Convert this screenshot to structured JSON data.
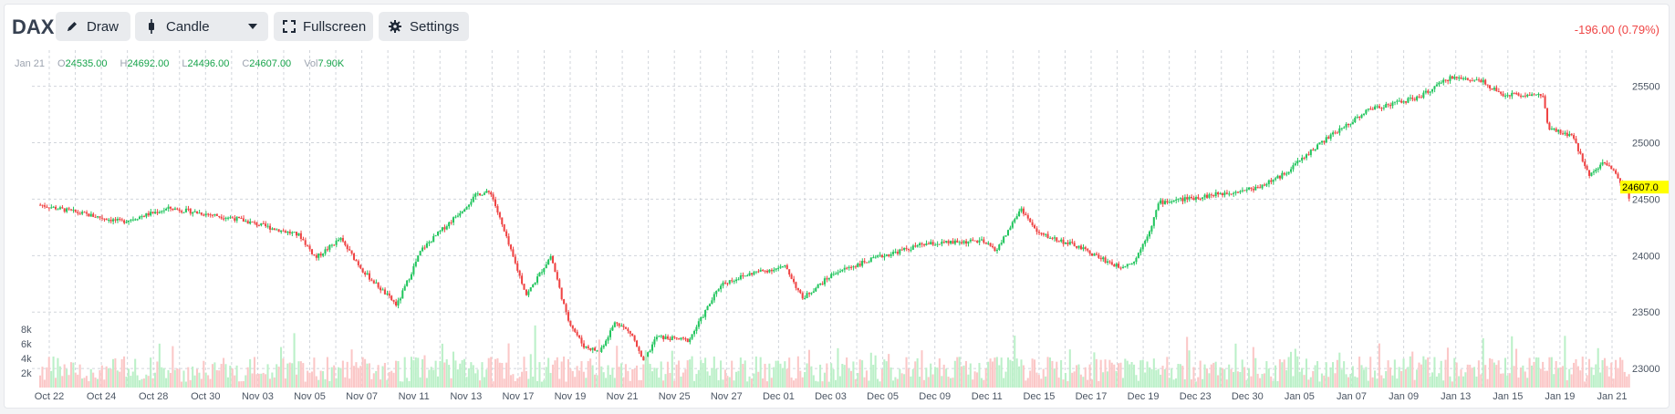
{
  "toolbar": {
    "symbol": "DAX",
    "draw_label": "Draw",
    "chart_type_label": "Candle",
    "fullscreen_label": "Fullscreen",
    "settings_label": "Settings",
    "change_text": "-196.00 (0.79%)"
  },
  "legend": {
    "date": "Jan 21",
    "open_key": "O",
    "open": "24535.00",
    "high_key": "H",
    "high": "24692.00",
    "low_key": "L",
    "low": "24496.00",
    "close_key": "C",
    "close": "24607.00",
    "vol_key": "Vol",
    "vol": "7.90K"
  },
  "colors": {
    "up": "#22c55e",
    "down": "#ef4444",
    "up_volume": "#bbf0c8",
    "down_volume": "#fbc7c7",
    "last_price_bg": "#ffff00",
    "grid": "#d1d5db",
    "axis_text": "#4b5563"
  },
  "chart_data": {
    "type": "candlestick",
    "title": "DAX",
    "x_labels": [
      "Oct 22",
      "Oct 24",
      "Oct 28",
      "Oct 30",
      "Nov 03",
      "Nov 05",
      "Nov 07",
      "Nov 11",
      "Nov 13",
      "Nov 17",
      "Nov 19",
      "Nov 21",
      "Nov 25",
      "Nov 27",
      "Dec 01",
      "Dec 03",
      "Dec 05",
      "Dec 09",
      "Dec 11",
      "Dec 15",
      "Dec 17",
      "Dec 19",
      "Dec 23",
      "Dec 30",
      "Jan 05",
      "Jan 07",
      "Jan 09",
      "Jan 13",
      "Jan 15",
      "Jan 19",
      "Jan 21"
    ],
    "y_ticks": [
      23000,
      23500,
      24000,
      24500,
      25000,
      25500
    ],
    "ylim": [
      22880,
      25820
    ],
    "volume_ticks": [
      "2k",
      "4k",
      "6k",
      "8k"
    ],
    "volume_max": 10000,
    "last_price": "24607.0",
    "price_path": [
      [
        0,
        24450
      ],
      [
        0.05,
        24300
      ],
      [
        0.08,
        24420
      ],
      [
        0.12,
        24330
      ],
      [
        0.16,
        24180
      ],
      [
        0.17,
        23980
      ],
      [
        0.185,
        24150
      ],
      [
        0.2,
        23850
      ],
      [
        0.22,
        23560
      ],
      [
        0.235,
        24050
      ],
      [
        0.255,
        24330
      ],
      [
        0.27,
        24550
      ],
      [
        0.278,
        24560
      ],
      [
        0.29,
        24050
      ],
      [
        0.3,
        23650
      ],
      [
        0.315,
        24000
      ],
      [
        0.325,
        23450
      ],
      [
        0.335,
        23200
      ],
      [
        0.345,
        23150
      ],
      [
        0.355,
        23420
      ],
      [
        0.365,
        23300
      ],
      [
        0.372,
        23050
      ],
      [
        0.38,
        23280
      ],
      [
        0.4,
        23250
      ],
      [
        0.41,
        23500
      ],
      [
        0.42,
        23750
      ],
      [
        0.44,
        23850
      ],
      [
        0.46,
        23900
      ],
      [
        0.47,
        23620
      ],
      [
        0.49,
        23850
      ],
      [
        0.52,
        24000
      ],
      [
        0.545,
        24100
      ],
      [
        0.58,
        24130
      ],
      [
        0.59,
        24050
      ],
      [
        0.605,
        24420
      ],
      [
        0.615,
        24200
      ],
      [
        0.64,
        24080
      ],
      [
        0.665,
        23900
      ],
      [
        0.675,
        23950
      ],
      [
        0.685,
        24250
      ],
      [
        0.69,
        24470
      ],
      [
        0.72,
        24530
      ],
      [
        0.75,
        24600
      ],
      [
        0.765,
        24700
      ],
      [
        0.79,
        25000
      ],
      [
        0.82,
        25300
      ],
      [
        0.85,
        25400
      ],
      [
        0.87,
        25580
      ],
      [
        0.89,
        25550
      ],
      [
        0.9,
        25430
      ],
      [
        0.927,
        25420
      ],
      [
        0.93,
        25120
      ],
      [
        0.945,
        25060
      ],
      [
        0.955,
        24720
      ],
      [
        0.965,
        24830
      ],
      [
        0.972,
        24720
      ],
      [
        0.98,
        24520
      ]
    ]
  }
}
